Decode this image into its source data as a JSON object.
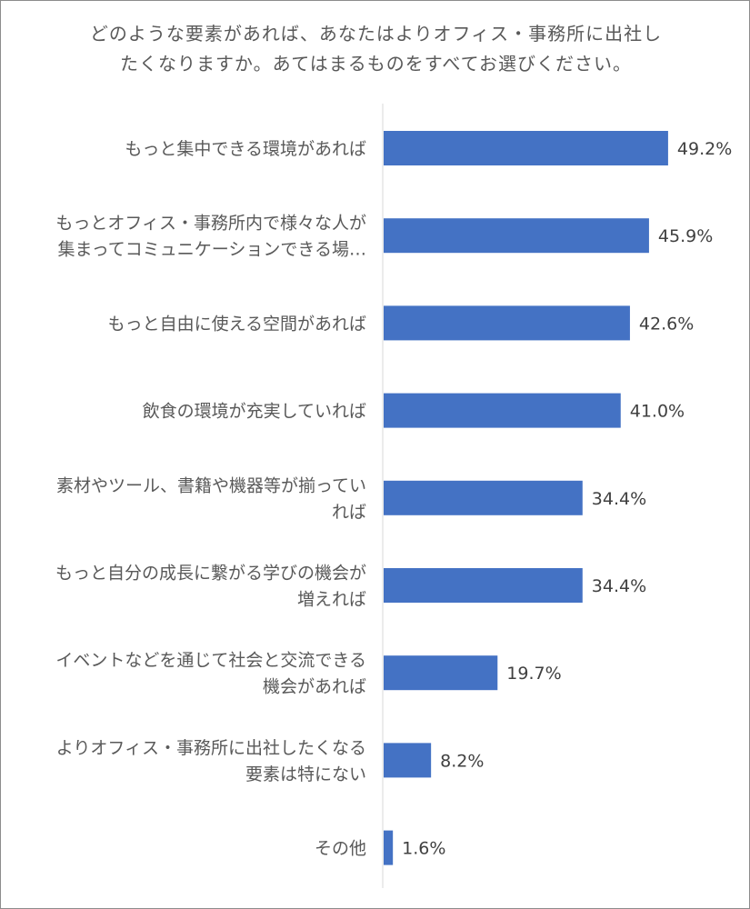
{
  "chart_data": {
    "type": "bar",
    "orientation": "horizontal",
    "title_lines": [
      "どのような要素があれば、あなたはよりオフィス・事務所に出社し",
      "たくなりますか。あてはまるものをすべてお選びください。"
    ],
    "categories": [
      [
        "もっと集中できる環境があれば"
      ],
      [
        "もっとオフィス・事務所内で様々な人が",
        "集まってコミュニケーションできる場…"
      ],
      [
        "もっと自由に使える空間があれば"
      ],
      [
        "飲食の環境が充実していれば"
      ],
      [
        "素材やツール、書籍や機器等が揃ってい",
        "れば"
      ],
      [
        "もっと自分の成長に繋がる学びの機会が",
        "増えれば"
      ],
      [
        "イベントなどを通じて社会と交流できる",
        "機会があれば"
      ],
      [
        "よりオフィス・事務所に出社したくなる",
        "要素は特にない"
      ],
      [
        "その他"
      ]
    ],
    "values": [
      49.2,
      45.9,
      42.6,
      41.0,
      34.4,
      34.4,
      19.7,
      8.2,
      1.6
    ],
    "value_labels": [
      "49.2%",
      "45.9%",
      "42.6%",
      "41.0%",
      "34.4%",
      "34.4%",
      "19.7%",
      "8.2%",
      "1.6%"
    ],
    "xlim": [
      0,
      50
    ],
    "bar_color": "#4472c4",
    "axis_color": "#d9d9d9",
    "grid": false,
    "legend": "none"
  }
}
